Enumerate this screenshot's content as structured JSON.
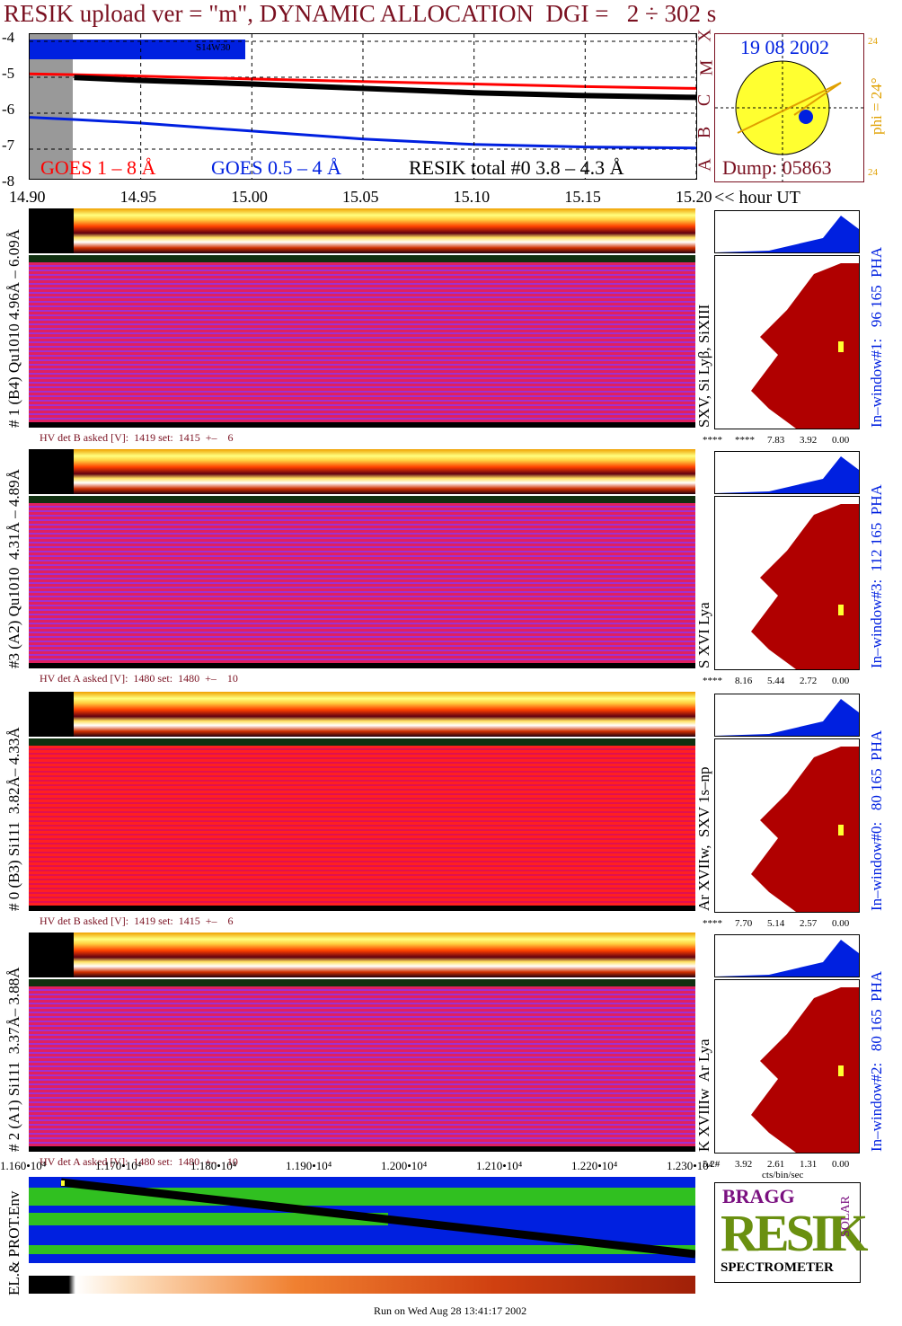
{
  "title": "RESIK upload ver = \"m\", DYNAMIC ALLOCATION  DGI =   2 ÷ 302 s",
  "goes": {
    "y_ticks": [
      "-4",
      "-5",
      "-6",
      "-7",
      "-8"
    ],
    "legend_red": "GOES 1 – 8 Å",
    "legend_blue": "GOES 0.5 – 4 Å",
    "legend_black": "RESIK total #0  3.8 – 4.3 Å",
    "flare_class_letters": [
      "X",
      "M",
      "C",
      "B",
      "A"
    ],
    "bar_label": "S14W30",
    "x_ticks": [
      "14.90",
      "14.95",
      "15.00",
      "15.05",
      "15.10",
      "15.15",
      "15.20"
    ],
    "x_unit": "<< hour UT",
    "colors": {
      "red": "#ff0000",
      "blue": "#0020e0",
      "black": "#000000"
    }
  },
  "sun": {
    "date": "19 08 2002",
    "dump": "Dump: 05863",
    "phi": "phi = 24°",
    "n_top": "24",
    "n_bottom": "24"
  },
  "detectors": [
    {
      "left_label": "# 1 (B4) Qu1010 4.96Å – 6.09Å",
      "hv": "HV det B asked [V]:  1419 set:  1415  +–    6",
      "lines": "SXV, Si Lyβ, SiXIII",
      "pha": "In–window#1:   96 165  PHA",
      "scale": [
        "****",
        "****",
        "7.83",
        "3.92",
        "0.00"
      ]
    },
    {
      "left_label": "#3 (A2) Qu1010  4.31Å – 4.89Å",
      "hv": "HV det A asked [V]:  1480 set:  1480  +–    10",
      "lines": "S XVI Lya",
      "pha": "In–window#3:  112 165  PHA",
      "scale": [
        "****",
        "8.16",
        "5.44",
        "2.72",
        "0.00"
      ]
    },
    {
      "left_label": "# 0 (B3) Si111  3.82Å– 4.33Å",
      "hv": "HV det B asked [V]:  1419 set:  1415  +–    6",
      "lines": "Ar XVIIw,  SXV 1s–np",
      "pha": "In–window#0:   80 165  PHA",
      "scale": [
        "****",
        "7.70",
        "5.14",
        "2.57",
        "0.00"
      ]
    },
    {
      "left_label": "# 2 (A1) Si111  3.37Å– 3.88Å",
      "hv": "HV det A asked [V]:  1480 set:  1480  +–    10",
      "lines": "K XVIIIw  Ar Lya",
      "pha": "In–window#2:   80 165  PHA",
      "scale": [
        "5.2#",
        "3.92",
        "2.61",
        "1.31",
        "0.00"
      ]
    }
  ],
  "bottom": {
    "x_ticks": [
      "1.160•10⁴",
      "1.170•10⁴",
      "1.180•10⁴",
      "1.190•10⁴",
      "1.200•10⁴",
      "1.210•10⁴",
      "1.220•10⁴",
      "1.230•10⁴"
    ],
    "env_label": "EL.& PROT.Env",
    "pha_unit": "cts/bin/sec",
    "footer": "Run on Wed Aug 28 13:41:17 2002"
  },
  "logo": {
    "word": "RESIK",
    "letters_b": "BRAGG",
    "solar": "SOLAR",
    "caption": "SPECTROMETER"
  },
  "chart_data": {
    "type": "line",
    "title": "RESIK upload ver = \"m\", DYNAMIC ALLOCATION  DGI =   2 ÷ 302 s",
    "xlabel": "<< hour UT",
    "ylabel": "",
    "xlim": [
      14.9,
      15.2
    ],
    "ylim": [
      -8,
      -4
    ],
    "x": [
      14.9,
      14.92,
      14.95,
      15.0,
      15.05,
      15.1,
      15.15,
      15.2
    ],
    "series": [
      {
        "name": "GOES 1 – 8 Å",
        "values": [
          -5.1,
          -5.12,
          -5.16,
          -5.24,
          -5.31,
          -5.38,
          -5.45,
          -5.5
        ]
      },
      {
        "name": "GOES 0.5 – 4 Å",
        "values": [
          -6.3,
          -6.36,
          -6.46,
          -6.68,
          -6.9,
          -7.05,
          -7.12,
          -7.15
        ]
      },
      {
        "name": "RESIK total #0  3.8 – 4.3 Å",
        "values": [
          -5.05,
          -5.2,
          -5.28,
          -5.38,
          -5.5,
          -5.62,
          -5.7,
          -5.75
        ]
      }
    ]
  }
}
